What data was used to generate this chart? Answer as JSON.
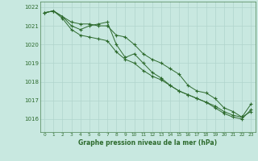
{
  "title": "Graphe pression niveau de la mer (hPa)",
  "background_color": "#c8e8e0",
  "grid_color": "#b0d4cc",
  "line_color": "#2d6a2d",
  "text_color": "#2d6a2d",
  "xlim": [
    -0.5,
    23.5
  ],
  "ylim": [
    1015.3,
    1022.3
  ],
  "yticks": [
    1016,
    1017,
    1018,
    1019,
    1020,
    1021,
    1022
  ],
  "xticks": [
    0,
    1,
    2,
    3,
    4,
    5,
    6,
    7,
    8,
    9,
    10,
    11,
    12,
    13,
    14,
    15,
    16,
    17,
    18,
    19,
    20,
    21,
    22,
    23
  ],
  "series": [
    {
      "x": [
        0,
        1,
        2,
        3,
        4,
        5,
        6,
        7,
        8,
        9,
        10,
        11,
        12,
        13,
        14,
        15,
        16,
        17,
        18,
        19,
        20,
        21,
        22,
        23
      ],
      "y": [
        1021.7,
        1021.8,
        1021.5,
        1021.2,
        1021.1,
        1021.1,
        1021.0,
        1021.0,
        1020.5,
        1020.4,
        1020.0,
        1019.5,
        1019.2,
        1019.0,
        1018.7,
        1018.4,
        1017.8,
        1017.5,
        1017.4,
        1017.1,
        1016.6,
        1016.4,
        1016.1,
        1016.4
      ]
    },
    {
      "x": [
        0,
        1,
        2,
        3,
        4,
        5,
        6,
        7,
        8,
        9,
        10,
        11,
        12,
        13,
        14,
        15,
        16,
        17,
        18,
        19,
        20,
        21,
        22,
        23
      ],
      "y": [
        1021.7,
        1021.8,
        1021.5,
        1021.0,
        1020.8,
        1021.0,
        1021.1,
        1021.2,
        1020.0,
        1019.3,
        1019.5,
        1019.0,
        1018.5,
        1018.2,
        1017.8,
        1017.5,
        1017.3,
        1017.1,
        1016.9,
        1016.6,
        1016.3,
        1016.1,
        1016.0,
        1016.5
      ]
    },
    {
      "x": [
        0,
        1,
        2,
        3,
        4,
        5,
        6,
        7,
        8,
        9,
        10,
        11,
        12,
        13,
        14,
        15,
        16,
        17,
        18,
        19,
        20,
        21,
        22,
        23
      ],
      "y": [
        1021.7,
        1021.8,
        1021.4,
        1020.8,
        1020.5,
        1020.4,
        1020.3,
        1020.2,
        1019.6,
        1019.2,
        1019.0,
        1018.6,
        1018.3,
        1018.1,
        1017.8,
        1017.5,
        1017.3,
        1017.1,
        1016.9,
        1016.7,
        1016.4,
        1016.2,
        1016.1,
        1016.8
      ]
    }
  ]
}
